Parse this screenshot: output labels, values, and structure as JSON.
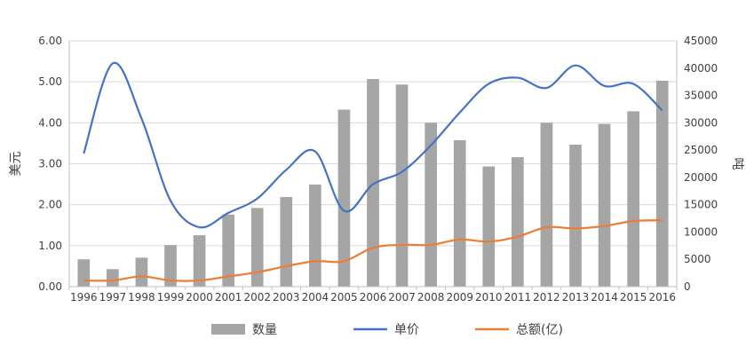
{
  "chart_data": {
    "type": "bar",
    "categories": [
      "1996",
      "1997",
      "1998",
      "1999",
      "2000",
      "2001",
      "2002",
      "2003",
      "2004",
      "2005",
      "2006",
      "2007",
      "2008",
      "2009",
      "2010",
      "2011",
      "2012",
      "2013",
      "2014",
      "2015",
      "2016"
    ],
    "series": [
      {
        "name": "数量",
        "kind": "bar",
        "axis": "right",
        "values": [
          5000,
          3200,
          5300,
          7600,
          9400,
          13200,
          14400,
          16400,
          18700,
          32400,
          38000,
          37000,
          30000,
          26800,
          22000,
          23700,
          30000,
          26000,
          29800,
          32100,
          37700
        ]
      },
      {
        "name": "单价",
        "kind": "line",
        "axis": "left",
        "values": [
          3.25,
          5.45,
          4.1,
          2.1,
          1.45,
          1.8,
          2.15,
          2.85,
          3.3,
          1.85,
          2.5,
          2.8,
          3.45,
          4.25,
          4.95,
          5.1,
          4.85,
          5.4,
          4.9,
          4.95,
          4.3
        ]
      },
      {
        "name": "总额(亿)",
        "kind": "line",
        "axis": "left",
        "values": [
          0.15,
          0.15,
          0.25,
          0.15,
          0.15,
          0.25,
          0.35,
          0.5,
          0.62,
          0.62,
          0.95,
          1.02,
          1.02,
          1.15,
          1.1,
          1.22,
          1.45,
          1.42,
          1.48,
          1.6,
          1.62
        ]
      }
    ],
    "left_axis": {
      "label": "美元",
      "range": [
        0,
        6
      ],
      "ticks": [
        "0.00",
        "1.00",
        "2.00",
        "3.00",
        "4.00",
        "5.00",
        "6.00"
      ]
    },
    "right_axis": {
      "label": "吨",
      "range": [
        0,
        45000
      ],
      "ticks": [
        "0",
        "5000",
        "10000",
        "15000",
        "20000",
        "25000",
        "30000",
        "35000",
        "40000",
        "45000"
      ]
    },
    "grid": true,
    "legend_position": "bottom",
    "colors": {
      "bar": "#a5a5a5",
      "unit_price_line": "#4472c4",
      "total_line": "#ed7d31",
      "grid": "#d9d9d9",
      "axis": "#bfbfbf"
    }
  }
}
